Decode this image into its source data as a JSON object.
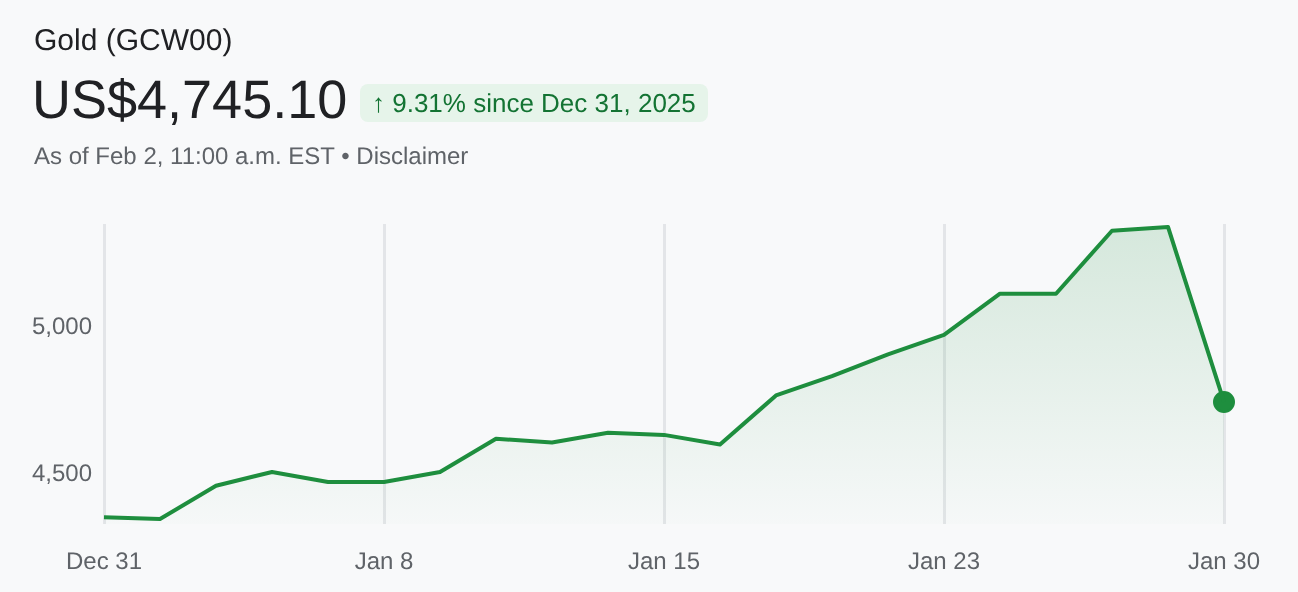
{
  "chart_data": {
    "type": "area",
    "title": "Gold (GCW00)",
    "subtitle": "US$4,745.10",
    "annotations": [
      "↑ 9.31% since Dec 31, 2025",
      "As of Feb 2, 11:00 a.m. EST • Disclaimer"
    ],
    "categories": [
      "Dec 31",
      null,
      null,
      null,
      null,
      "Jan 8",
      null,
      null,
      null,
      null,
      "Jan 15",
      null,
      null,
      null,
      null,
      "Jan 23",
      null,
      null,
      null,
      null,
      "Jan 30"
    ],
    "series": [
      {
        "color": "#1e8e3e",
        "marker": "none",
        "values": [
          4353,
          4347,
          4460,
          4507,
          4473,
          4473,
          4507,
          4620,
          4607,
          4640,
          4633,
          4600,
          4767,
          4833,
          4907,
          4973,
          5113,
          5113,
          5327,
          5340,
          4745
        ]
      },
      {
        "type": "scatter",
        "color": "#1e8e3e",
        "marker": "circle",
        "values": [
          null,
          null,
          null,
          null,
          null,
          null,
          null,
          null,
          null,
          null,
          null,
          null,
          null,
          null,
          null,
          null,
          null,
          null,
          null,
          null,
          4745
        ]
      }
    ],
    "ylim": [
      4330,
      5350
    ],
    "yticks": [
      {
        "value": 4500,
        "label": "4,500"
      },
      {
        "value": 5000,
        "label": "5,000"
      }
    ],
    "grid": "x",
    "legend": false
  }
}
